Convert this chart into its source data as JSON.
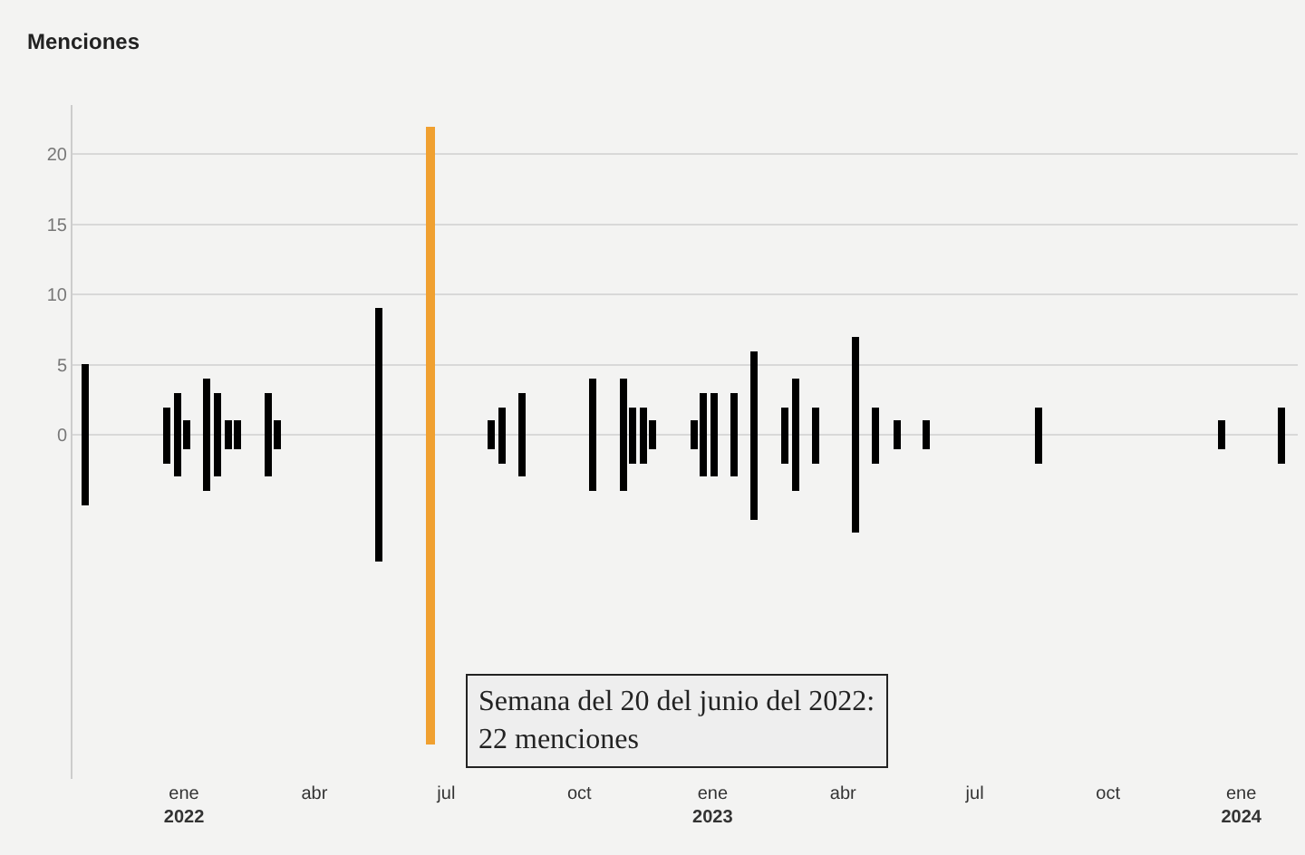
{
  "chart_data": {
    "type": "bar",
    "ylabel": "Menciones",
    "x": [
      "2021-10-25",
      "2021-12-20",
      "2021-12-27",
      "2022-01-03",
      "2022-01-17",
      "2022-01-24",
      "2022-01-31",
      "2022-02-07",
      "2022-02-28",
      "2022-03-07",
      "2022-05-16",
      "2022-06-20",
      "2022-08-01",
      "2022-08-08",
      "2022-08-22",
      "2022-10-10",
      "2022-10-31",
      "2022-11-07",
      "2022-11-14",
      "2022-11-21",
      "2022-12-19",
      "2022-12-26",
      "2023-01-02",
      "2023-01-16",
      "2023-01-30",
      "2023-02-20",
      "2023-02-27",
      "2023-03-13",
      "2023-04-10",
      "2023-04-24",
      "2023-05-08",
      "2023-05-29",
      "2023-08-14",
      "2023-12-18",
      "2024-01-29"
    ],
    "base": [
      -5,
      -2,
      -3,
      -1,
      -4,
      -3,
      -1,
      -1,
      -3,
      -1,
      -9,
      -22,
      -1,
      -2,
      -3,
      -4,
      -4,
      -2,
      -2,
      -1,
      -1,
      -3,
      -3,
      -3,
      -6,
      -2,
      -4,
      -2,
      -7,
      -2,
      -1,
      -1,
      -2,
      -1,
      -2
    ],
    "values": [
      10,
      4,
      6,
      2,
      8,
      6,
      2,
      2,
      6,
      2,
      18,
      44,
      2,
      4,
      6,
      8,
      8,
      4,
      4,
      2,
      2,
      6,
      6,
      6,
      12,
      4,
      8,
      4,
      14,
      4,
      2,
      2,
      4,
      2,
      4
    ],
    "colors": [
      "#000000",
      "#000000",
      "#000000",
      "#000000",
      "#000000",
      "#000000",
      "#000000",
      "#000000",
      "#000000",
      "#000000",
      "#000000",
      "#f0a030",
      "#000000",
      "#000000",
      "#000000",
      "#000000",
      "#000000",
      "#000000",
      "#000000",
      "#000000",
      "#000000",
      "#000000",
      "#000000",
      "#000000",
      "#000000",
      "#000000",
      "#000000",
      "#000000",
      "#000000",
      "#000000",
      "#000000",
      "#000000",
      "#000000",
      "#000000",
      "#000000"
    ],
    "ylim": [
      -24.5,
      23.5
    ],
    "yticks": [
      0,
      5,
      10,
      15,
      20
    ],
    "xlim": [
      "2021-10-16",
      "2024-02-09"
    ],
    "xticks": [
      {
        "value": "2022-01-01",
        "label": "ene\n2022"
      },
      {
        "value": "2022-04-01",
        "label": "abr"
      },
      {
        "value": "2022-07-01",
        "label": "jul"
      },
      {
        "value": "2022-10-01",
        "label": "oct"
      },
      {
        "value": "2023-01-01",
        "label": "ene\n2023"
      },
      {
        "value": "2023-04-01",
        "label": "abr"
      },
      {
        "value": "2023-07-01",
        "label": "jul"
      },
      {
        "value": "2023-10-01",
        "label": "oct"
      },
      {
        "value": "2024-01-01",
        "label": "ene\n2024"
      }
    ],
    "grid": "y",
    "annotations": [
      {
        "text": "Semana del 20 del junio del 2022:\n22 menciones",
        "x": "2022-06-20",
        "y": -17
      }
    ]
  }
}
